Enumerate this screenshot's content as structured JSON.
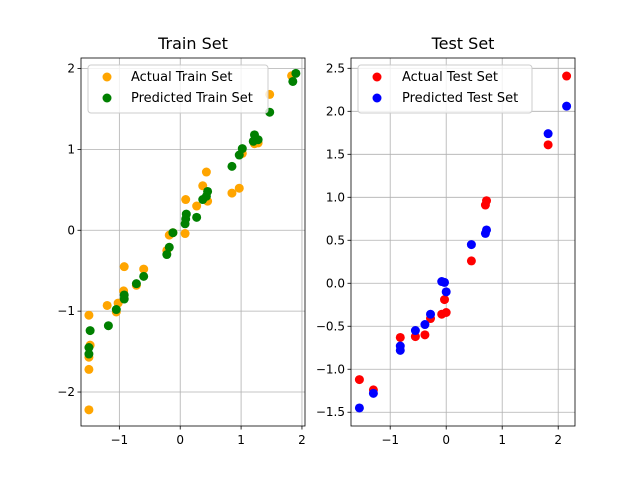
{
  "chart_data": [
    {
      "type": "scatter",
      "title": "Train Set",
      "xlim": [
        -1.63,
        2.05
      ],
      "ylim": [
        -2.42,
        2.13
      ],
      "xticks": [
        -1,
        0,
        1,
        2
      ],
      "yticks": [
        -2,
        -1,
        0,
        1,
        2
      ],
      "grid": true,
      "legend": "top-left",
      "series": [
        {
          "name": "Actual Train Set",
          "color": "#ffa500",
          "points": [
            [
              -1.5,
              -2.22
            ],
            [
              -1.5,
              -1.72
            ],
            [
              -1.5,
              -1.57
            ],
            [
              -1.48,
              -1.42
            ],
            [
              -1.5,
              -1.05
            ],
            [
              -1.2,
              -0.93
            ],
            [
              -1.05,
              -1.01
            ],
            [
              -1.02,
              -0.9
            ],
            [
              -0.93,
              -0.75
            ],
            [
              -0.92,
              -0.45
            ],
            [
              -0.72,
              -0.68
            ],
            [
              -0.6,
              -0.48
            ],
            [
              -0.22,
              -0.25
            ],
            [
              -0.18,
              -0.06
            ],
            [
              -0.12,
              -0.03
            ],
            [
              0.08,
              -0.04
            ],
            [
              0.09,
              0.38
            ],
            [
              0.27,
              0.3
            ],
            [
              0.37,
              0.55
            ],
            [
              0.43,
              0.72
            ],
            [
              0.45,
              0.36
            ],
            [
              0.85,
              0.46
            ],
            [
              0.97,
              0.52
            ],
            [
              1.02,
              0.95
            ],
            [
              1.22,
              1.07
            ],
            [
              1.28,
              1.08
            ],
            [
              1.47,
              1.68
            ],
            [
              1.83,
              1.91
            ]
          ]
        },
        {
          "name": "Predicted Train Set",
          "color": "#008000",
          "points": [
            [
              -1.5,
              -1.53
            ],
            [
              -1.5,
              -1.45
            ],
            [
              -1.48,
              -1.24
            ],
            [
              -1.18,
              -1.18
            ],
            [
              -1.05,
              -0.98
            ],
            [
              -0.92,
              -0.85
            ],
            [
              -0.92,
              -0.8
            ],
            [
              -0.72,
              -0.66
            ],
            [
              -0.6,
              -0.57
            ],
            [
              -0.22,
              -0.3
            ],
            [
              -0.18,
              -0.21
            ],
            [
              -0.12,
              -0.03
            ],
            [
              0.08,
              0.08
            ],
            [
              0.09,
              0.14
            ],
            [
              0.1,
              0.2
            ],
            [
              0.27,
              0.16
            ],
            [
              0.37,
              0.38
            ],
            [
              0.43,
              0.42
            ],
            [
              0.45,
              0.48
            ],
            [
              0.85,
              0.79
            ],
            [
              0.97,
              0.93
            ],
            [
              1.02,
              1.01
            ],
            [
              1.2,
              1.1
            ],
            [
              1.22,
              1.18
            ],
            [
              1.28,
              1.12
            ],
            [
              1.47,
              1.46
            ],
            [
              1.85,
              1.84
            ],
            [
              1.9,
              1.94
            ]
          ]
        }
      ]
    },
    {
      "type": "scatter",
      "title": "Test Set",
      "xlim": [
        -1.7,
        2.3
      ],
      "ylim": [
        -1.66,
        2.62
      ],
      "xticks": [
        -1,
        0,
        1,
        2
      ],
      "yticks": [
        -1.5,
        -1.0,
        -0.5,
        0.0,
        0.5,
        1.0,
        1.5,
        2.0,
        2.5
      ],
      "grid": true,
      "legend": "top-left",
      "series": [
        {
          "name": "Actual Test Set",
          "color": "#ff0000",
          "points": [
            [
              -1.55,
              -1.12
            ],
            [
              -1.3,
              -1.24
            ],
            [
              -0.82,
              -0.63
            ],
            [
              -0.55,
              -0.62
            ],
            [
              -0.38,
              -0.6
            ],
            [
              -0.28,
              -0.41
            ],
            [
              -0.08,
              -0.36
            ],
            [
              0.0,
              -0.34
            ],
            [
              -0.03,
              -0.19
            ],
            [
              0.45,
              0.26
            ],
            [
              0.7,
              0.91
            ],
            [
              0.72,
              0.96
            ],
            [
              1.82,
              1.61
            ],
            [
              2.15,
              2.41
            ]
          ]
        },
        {
          "name": "Predicted Test Set",
          "color": "#0000ff",
          "points": [
            [
              -1.55,
              -1.45
            ],
            [
              -1.3,
              -1.28
            ],
            [
              -0.82,
              -0.78
            ],
            [
              -0.82,
              -0.73
            ],
            [
              -0.55,
              -0.55
            ],
            [
              -0.38,
              -0.48
            ],
            [
              -0.28,
              -0.36
            ],
            [
              -0.08,
              0.02
            ],
            [
              -0.03,
              0.01
            ],
            [
              0.0,
              -0.1
            ],
            [
              0.45,
              0.45
            ],
            [
              0.7,
              0.58
            ],
            [
              0.72,
              0.62
            ],
            [
              1.82,
              1.74
            ],
            [
              2.15,
              2.06
            ]
          ]
        }
      ]
    }
  ]
}
